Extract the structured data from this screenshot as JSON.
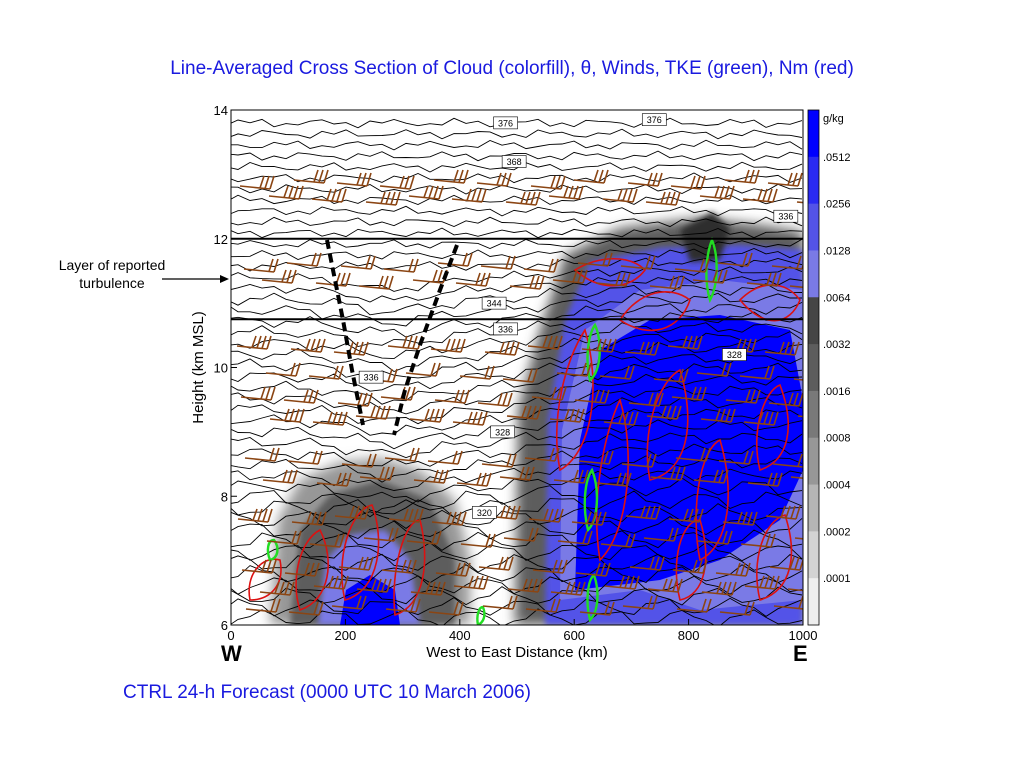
{
  "title": "Line-Averaged Cross Section of Cloud (colorfill), θ, Winds, TKE (green), Nm (red)",
  "caption": "CTRL 24-h Forecast (0000 UTC 10 March 2006)",
  "annotation": {
    "line1": "Layer of reported",
    "line2": "turbulence"
  },
  "colors": {
    "title_text": "#1a1adf",
    "theta_contours": "#000000",
    "tke_contours": "#22dd22",
    "nm_contours": "#dd1111",
    "wind_barbs": "#8b4513",
    "cloud_max": "#0000ff"
  },
  "chart_data": {
    "type": "contour",
    "xlabel": "West to East Distance (km)",
    "ylabel": "Height (km MSL)",
    "xlim": [
      0,
      1000
    ],
    "ylim": [
      6,
      14
    ],
    "x_ticks": [
      "0",
      "200",
      "400",
      "600",
      "800",
      "1000"
    ],
    "y_ticks": [
      "6",
      "8",
      "10",
      "12",
      "14"
    ],
    "x_tick_values": [
      0,
      200,
      400,
      600,
      800,
      1000
    ],
    "y_tick_values": [
      6,
      8,
      10,
      12,
      14
    ],
    "west_label": "W",
    "east_label": "E",
    "turbulence_layer_km": [
      10.75,
      12.0
    ],
    "theta_contour_labels": [
      {
        "x": 480,
        "y": 13.8,
        "text": "376"
      },
      {
        "x": 740,
        "y": 13.85,
        "text": "376"
      },
      {
        "x": 495,
        "y": 13.2,
        "text": "368"
      },
      {
        "x": 970,
        "y": 12.35,
        "text": "336"
      },
      {
        "x": 460,
        "y": 11.0,
        "text": "344"
      },
      {
        "x": 480,
        "y": 10.6,
        "text": "336"
      },
      {
        "x": 245,
        "y": 9.85,
        "text": "336"
      },
      {
        "x": 475,
        "y": 9.0,
        "text": "328"
      },
      {
        "x": 880,
        "y": 10.2,
        "text": "328"
      },
      {
        "x": 443,
        "y": 7.75,
        "text": "320"
      }
    ],
    "colorbar": {
      "title": "g/kg",
      "labels": [
        ".0512",
        ".0256",
        ".0128",
        ".0064",
        ".0032",
        ".0016",
        ".0008",
        ".0004",
        ".0002",
        ".0001"
      ],
      "colors": [
        "#0000ff",
        "#2a2af2",
        "#5353e8",
        "#7a7ae6",
        "#454545",
        "#5d5d5d",
        "#797979",
        "#979797",
        "#b5b5b5",
        "#d3d3d3",
        "#eeeeee"
      ]
    }
  }
}
